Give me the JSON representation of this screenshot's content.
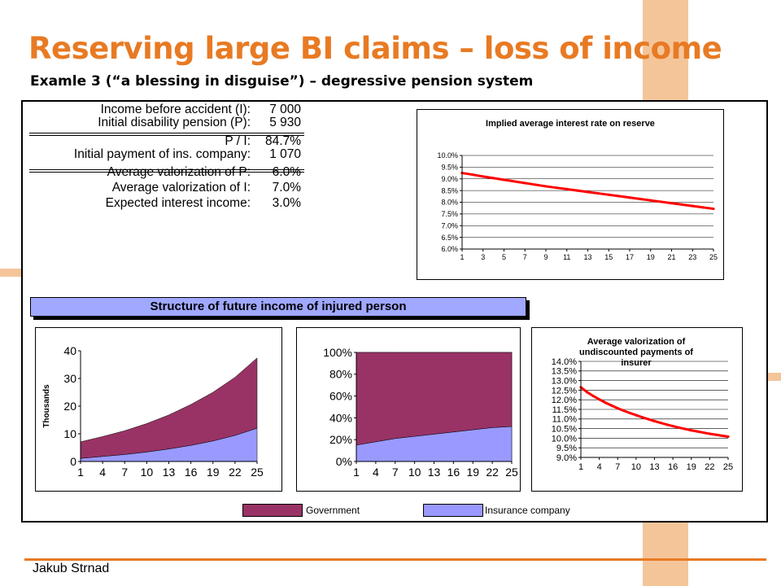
{
  "slide": {
    "title": "Reserving large BI claims – loss of income",
    "subtitle": "Examle 3 (“a blessing in disguise”) – degressive pension system",
    "author": "Jakub Strnad"
  },
  "colors": {
    "accent": "#e87a23",
    "government": "#993366",
    "insurance": "#9999ff",
    "rate_line": "#ff0000"
  },
  "parameters": [
    {
      "label": "Income before accident (I):",
      "value": "7 000"
    },
    {
      "label": "Initial disability pension (P):",
      "value": "5 930"
    },
    {
      "label": "P / I:",
      "value": "84.7%"
    },
    {
      "label": "Initial payment of ins. company:",
      "value": "1 070"
    },
    {
      "label": "Average valorization of P:",
      "value": "6.0%"
    },
    {
      "label": "Average valorization of I:",
      "value": "7.0%"
    },
    {
      "label": "Expected interest income:",
      "value": "3.0%"
    }
  ],
  "banner": "Structure of future income of injured person",
  "legend": [
    "Government",
    "Insurance company"
  ],
  "chart_data": [
    {
      "type": "line",
      "title": "Implied average interest rate on reserve",
      "x": [
        1,
        2,
        3,
        4,
        5,
        6,
        7,
        8,
        9,
        10,
        11,
        12,
        13,
        14,
        15,
        16,
        17,
        18,
        19,
        20,
        21,
        22,
        23,
        24,
        25
      ],
      "x_tick_labels": [
        "1",
        "3",
        "5",
        "7",
        "9",
        "11",
        "13",
        "15",
        "17",
        "19",
        "21",
        "23",
        "25"
      ],
      "y_tick_labels": [
        "6.0%",
        "6.5%",
        "7.0%",
        "7.5%",
        "8.0%",
        "8.5%",
        "9.0%",
        "9.5%",
        "10.0%"
      ],
      "ylim": [
        6.0,
        10.0
      ],
      "series": [
        {
          "values": [
            9.25,
            9.18,
            9.1,
            9.03,
            8.96,
            8.89,
            8.82,
            8.75,
            8.68,
            8.62,
            8.56,
            8.5,
            8.44,
            8.38,
            8.32,
            8.26,
            8.2,
            8.14,
            8.08,
            8.02,
            7.96,
            7.9,
            7.84,
            7.78,
            7.72
          ]
        }
      ],
      "grid": true
    },
    {
      "type": "area",
      "stacked": true,
      "ylabel": "Thousands",
      "x": [
        1,
        4,
        7,
        10,
        13,
        16,
        19,
        22,
        25
      ],
      "x_tick_labels": [
        "1",
        "4",
        "7",
        "10",
        "13",
        "16",
        "19",
        "22",
        "25"
      ],
      "y_tick_labels": [
        "0",
        "10",
        "20",
        "30",
        "40"
      ],
      "ylim": [
        0,
        40
      ],
      "series": [
        {
          "name": "Insurance company",
          "values": [
            1.1,
            1.8,
            2.5,
            3.4,
            4.5,
            5.8,
            7.4,
            9.4,
            12.0
          ]
        },
        {
          "name": "Government",
          "values": [
            6.0,
            7.2,
            8.6,
            10.3,
            12.3,
            14.8,
            17.6,
            21.0,
            25.4
          ]
        }
      ],
      "grid": false
    },
    {
      "type": "area",
      "stacked": true,
      "percent": true,
      "x": [
        1,
        4,
        7,
        10,
        13,
        16,
        19,
        22,
        25
      ],
      "x_tick_labels": [
        "1",
        "4",
        "7",
        "10",
        "13",
        "16",
        "19",
        "22",
        "25"
      ],
      "y_tick_labels": [
        "0%",
        "20%",
        "40%",
        "60%",
        "80%",
        "100%"
      ],
      "ylim": [
        0,
        100
      ],
      "series": [
        {
          "name": "Insurance company",
          "values": [
            15,
            18,
            21,
            23,
            25,
            27,
            29,
            31,
            32
          ]
        },
        {
          "name": "Government",
          "values": [
            85,
            82,
            79,
            77,
            75,
            73,
            71,
            69,
            68
          ]
        }
      ],
      "grid": false
    },
    {
      "type": "line",
      "title": "Average valorization of undiscounted payments of insurer",
      "x": [
        1,
        2,
        3,
        4,
        5,
        6,
        7,
        8,
        9,
        10,
        11,
        12,
        13,
        14,
        15,
        16,
        17,
        18,
        19,
        20,
        21,
        22,
        23,
        24,
        25
      ],
      "x_tick_labels": [
        "1",
        "4",
        "7",
        "10",
        "13",
        "16",
        "19",
        "22",
        "25"
      ],
      "y_tick_labels": [
        "9.0%",
        "9.5%",
        "10.0%",
        "10.5%",
        "11.0%",
        "11.5%",
        "12.0%",
        "12.5%",
        "13.0%",
        "13.5%",
        "14.0%"
      ],
      "ylim": [
        9.0,
        14.0
      ],
      "series": [
        {
          "values": [
            12.65,
            12.4,
            12.2,
            12.02,
            11.85,
            11.7,
            11.56,
            11.43,
            11.31,
            11.2,
            11.09,
            10.99,
            10.89,
            10.8,
            10.71,
            10.63,
            10.55,
            10.48,
            10.41,
            10.35,
            10.29,
            10.23,
            10.18,
            10.13,
            10.08
          ]
        }
      ],
      "grid": true
    }
  ]
}
